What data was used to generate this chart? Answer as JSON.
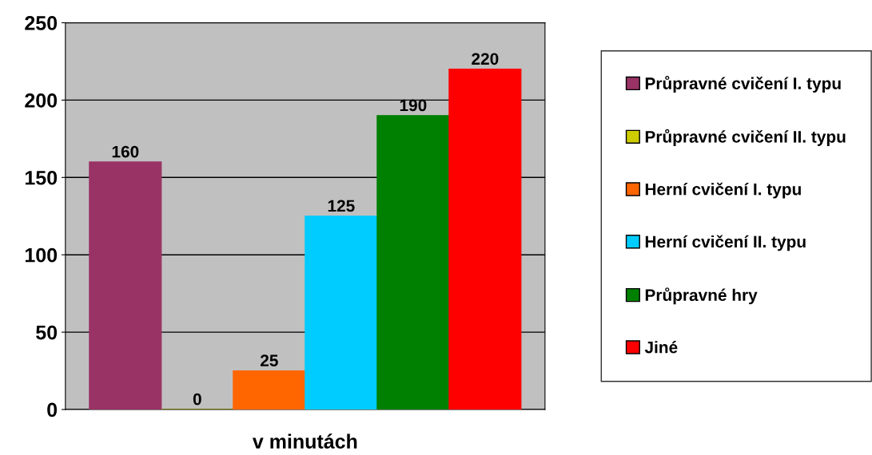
{
  "chart_data": {
    "type": "bar",
    "categories": [
      "v minutách"
    ],
    "ylim": [
      0,
      250
    ],
    "yticks": [
      0,
      50,
      100,
      150,
      200,
      250
    ],
    "grid": "y",
    "legend": "right",
    "data_labels": true,
    "series": [
      {
        "name": "Průpravné cvičení I. typu",
        "color": "#993366",
        "values": [
          160
        ]
      },
      {
        "name": "Průpravné cvičení II. typu",
        "color": "#cccc00",
        "values": [
          0
        ]
      },
      {
        "name": "Herní cvičení I. typu",
        "color": "#ff6600",
        "values": [
          25
        ]
      },
      {
        "name": "Herní cvičení II. typu",
        "color": "#00ccff",
        "values": [
          125
        ]
      },
      {
        "name": "Průpravné hry",
        "color": "#008000",
        "values": [
          190
        ]
      },
      {
        "name": "Jiné",
        "color": "#ff0000",
        "values": [
          220
        ]
      }
    ]
  }
}
